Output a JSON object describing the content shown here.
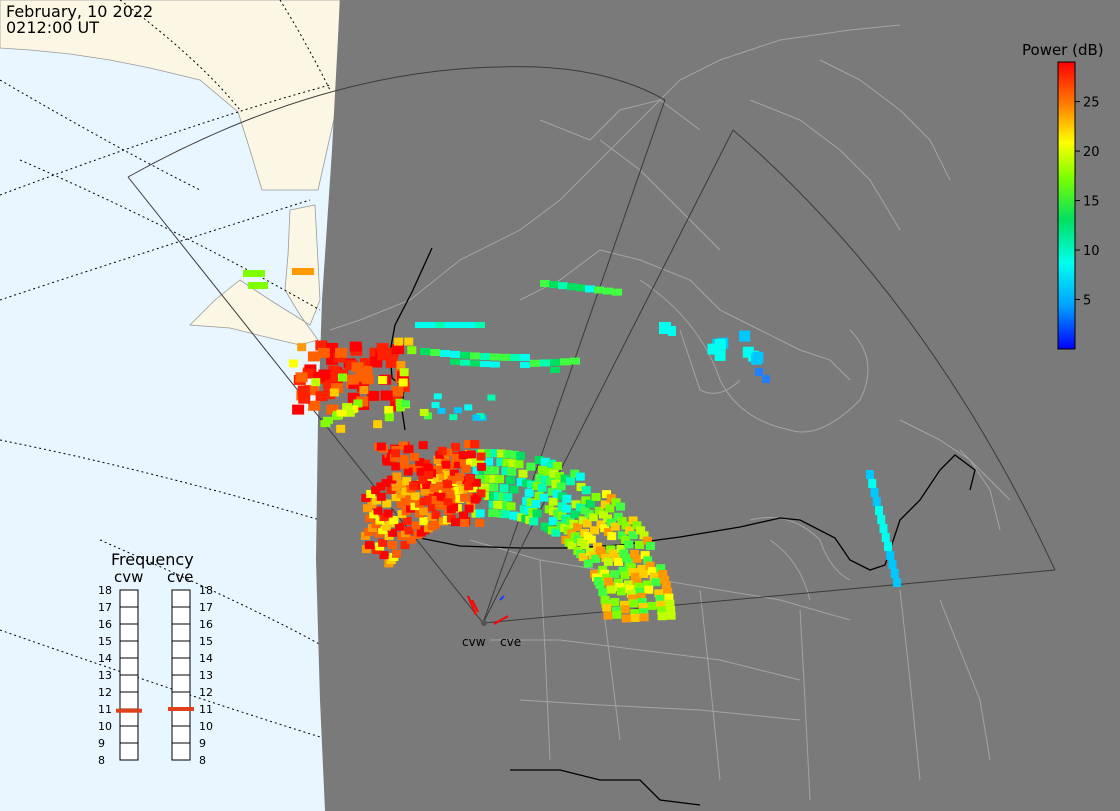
{
  "header": {
    "date": "February, 10 2022",
    "time": "0212:00 UT"
  },
  "colorbar": {
    "title": "Power (dB)",
    "ticks": [
      {
        "value": 25,
        "label": "25"
      },
      {
        "value": 20,
        "label": "20"
      },
      {
        "value": 15,
        "label": "15"
      },
      {
        "value": 10,
        "label": "10"
      },
      {
        "value": 5,
        "label": "5"
      }
    ],
    "min": 0,
    "max": 29
  },
  "frequency_panel": {
    "title": "Frequency",
    "radars": [
      {
        "name": "cvw",
        "frequency_mhz": 10.9,
        "marker_color": "#e0401a"
      },
      {
        "name": "cve",
        "frequency_mhz": 11.0,
        "marker_color": "#e0401a"
      }
    ],
    "scale": [
      "18",
      "17",
      "16",
      "15",
      "14",
      "13",
      "12",
      "11",
      "10",
      "9",
      "8"
    ]
  },
  "sites": [
    {
      "name": "cvw"
    },
    {
      "name": "cve"
    }
  ],
  "colors": {
    "ocean": "#e8f6ff",
    "night": "#7a7a7a",
    "land_day": "#fbf7e4",
    "border": "#000000"
  }
}
